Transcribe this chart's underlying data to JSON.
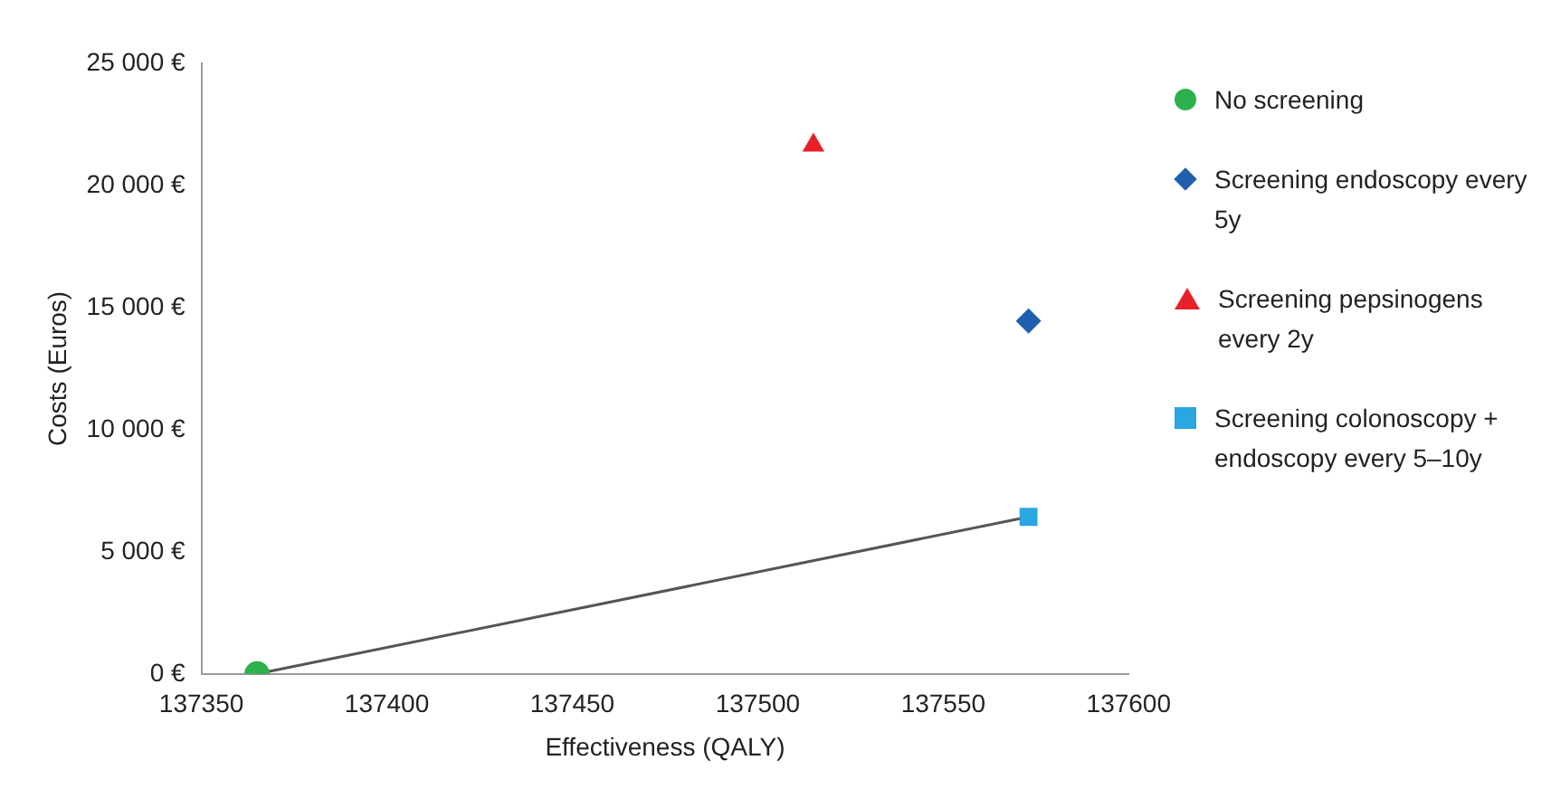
{
  "chart_data": {
    "type": "scatter",
    "xlabel": "Effectiveness (QALY)",
    "ylabel": "Costs (Euros)",
    "xlim": [
      137350,
      137600
    ],
    "xticks": [
      137350,
      137400,
      137450,
      137500,
      137550,
      137600
    ],
    "ylim": [
      0,
      25000
    ],
    "yticks": [
      {
        "value": 0,
        "label": "0 €"
      },
      {
        "value": 5000,
        "label": "5 000 €"
      },
      {
        "value": 10000,
        "label": "10 000 €"
      },
      {
        "value": 15000,
        "label": "15 000 €"
      },
      {
        "value": 20000,
        "label": "20 000 €"
      },
      {
        "value": 25000,
        "label": "25 000 €"
      }
    ],
    "grid": false,
    "legend": "right",
    "series": [
      {
        "type": "line",
        "color": "#555555",
        "marker": "none",
        "x": [
          137365,
          137573
        ],
        "values": [
          0,
          6430
        ]
      },
      {
        "name": "No screening",
        "color": "#2bb24c",
        "marker": "circle",
        "x": [
          137365
        ],
        "values": [
          0
        ]
      },
      {
        "name": "Screening endoscopy every 5y",
        "color": "#1f5fae",
        "marker": "diamond",
        "x": [
          137573
        ],
        "values": [
          14450
        ]
      },
      {
        "name": "Screening pepsinogens every 2y",
        "color": "#e8202a",
        "marker": "triangle",
        "x": [
          137515
        ],
        "values": [
          21650
        ]
      },
      {
        "name": "Screening colonoscopy + endoscopy every 5–10y",
        "color": "#2aa6e0",
        "marker": "square",
        "x": [
          137573
        ],
        "values": [
          6430
        ]
      }
    ]
  }
}
